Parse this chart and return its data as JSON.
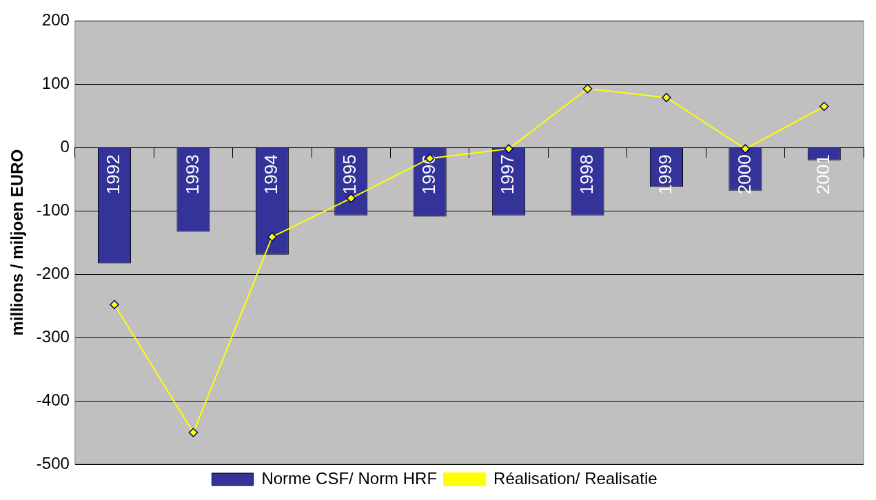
{
  "chart_data": {
    "type": "bar",
    "ylabel": "millions / miljoen EURO",
    "categories": [
      "1992",
      "1993",
      "1994",
      "1995",
      "1996",
      "1997",
      "1998",
      "1999",
      "2000",
      "2001"
    ],
    "series": [
      {
        "name": "Norme CSF/ Norm HRF",
        "color": "#333399",
        "values": [
          -183,
          -133,
          -169,
          -107,
          -109,
          -107,
          -107,
          -62,
          -68,
          -20
        ]
      },
      {
        "name": "Réalisation/ Realisatie",
        "type": "line",
        "color": "#ffff00",
        "marker": "diamond",
        "values": [
          -248,
          -450,
          -141,
          -80,
          -17,
          -2,
          93,
          79,
          -2,
          65
        ]
      }
    ],
    "ylim": [
      -500,
      200
    ],
    "yticks": [
      -500,
      -400,
      -300,
      -200,
      -100,
      0,
      100,
      200
    ],
    "grid": "y",
    "legend": "bottom"
  }
}
